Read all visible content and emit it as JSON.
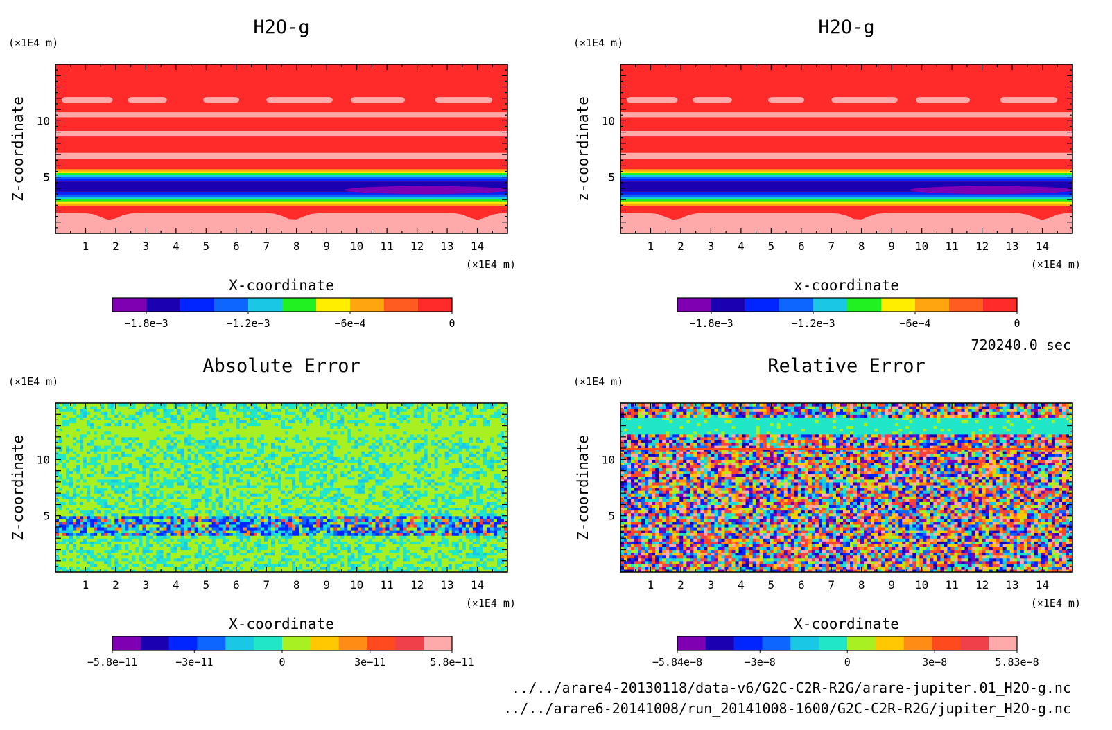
{
  "time_label": "720240.0 sec",
  "files": [
    "../../arare4-20130118/data-v6/G2C-C2R-R2G/arare-jupiter.01_H2O-g.nc",
    "../../arare6-20141008/run_20141008-1600/G2C-C2R-R2G/jupiter_H2O-g.nc"
  ],
  "chart_data": [
    {
      "type": "heatmap",
      "id": "h2o-left",
      "title": "H2O-g",
      "xlabel": "X-coordinate",
      "ylabel": "Z-coordinate",
      "x_unit": "(×1E4 m)",
      "y_unit": "(×1E4 m)",
      "xlim": [
        0,
        15
      ],
      "ylim": [
        0,
        15
      ],
      "x_ticks": [
        1,
        2,
        3,
        4,
        5,
        6,
        7,
        8,
        9,
        10,
        11,
        12,
        13,
        14
      ],
      "y_ticks": [
        5,
        10
      ],
      "pattern": "bands",
      "colorbar": {
        "colors": [
          "#7f00b2",
          "#1b00b2",
          "#0025ff",
          "#0d66ff",
          "#1ac8e6",
          "#21f021",
          "#ffee00",
          "#ffa510",
          "#ff5c22",
          "#ff2a2a"
        ],
        "tick_labels": [
          "−1.8e−3",
          "−1.2e−3",
          "−6e−4",
          "0"
        ],
        "tick_values": [
          -0.0018,
          -0.0012,
          -0.0006,
          0
        ],
        "range": [
          -0.002,
          0.0
        ]
      }
    },
    {
      "type": "heatmap",
      "id": "h2o-right",
      "title": "H2O-g",
      "xlabel": "x-coordinate",
      "ylabel": "z-coordinate",
      "x_unit": "(×1E4 m)",
      "y_unit": "(×1E4 m)",
      "xlim": [
        0,
        15
      ],
      "ylim": [
        0,
        15
      ],
      "x_ticks": [
        1,
        2,
        3,
        4,
        5,
        6,
        7,
        8,
        9,
        10,
        11,
        12,
        13,
        14
      ],
      "y_ticks": [
        5,
        10
      ],
      "pattern": "bands",
      "colorbar": {
        "colors": [
          "#7f00b2",
          "#1b00b2",
          "#0025ff",
          "#0d66ff",
          "#1ac8e6",
          "#21f021",
          "#ffee00",
          "#ffa510",
          "#ff5c22",
          "#ff2a2a"
        ],
        "tick_labels": [
          "−1.8e−3",
          "−1.2e−3",
          "−6e−4",
          "0"
        ],
        "tick_values": [
          -0.0018,
          -0.0012,
          -0.0006,
          0
        ],
        "range": [
          -0.002,
          0.0
        ]
      }
    },
    {
      "type": "heatmap",
      "id": "abs-error",
      "title": "Absolute Error",
      "xlabel": "X-coordinate",
      "ylabel": "Z-coordinate",
      "x_unit": "(×1E4 m)",
      "y_unit": "(×1E4 m)",
      "xlim": [
        0,
        15
      ],
      "ylim": [
        0,
        15
      ],
      "x_ticks": [
        1,
        2,
        3,
        4,
        5,
        6,
        7,
        8,
        9,
        10,
        11,
        12,
        13,
        14
      ],
      "y_ticks": [
        5,
        10
      ],
      "pattern": "abs_noise",
      "colorbar": {
        "colors": [
          "#7f00b2",
          "#1b00b2",
          "#0025ff",
          "#0d66ff",
          "#1ac8e6",
          "#21e6c8",
          "#a8f021",
          "#ffc800",
          "#ff8c14",
          "#ff4a1e",
          "#f0404a",
          "#ffaaaa"
        ],
        "tick_labels": [
          "−5.8e−11",
          "−3e−11",
          "0",
          "3e−11",
          "5.8e−11"
        ],
        "tick_values": [
          -5.8e-11,
          -3e-11,
          0,
          3e-11,
          5.8e-11
        ],
        "range": [
          -5.8e-11,
          5.8e-11
        ]
      }
    },
    {
      "type": "heatmap",
      "id": "rel-error",
      "title": "Relative Error",
      "xlabel": "X-coordinate",
      "ylabel": "Z-coordinate",
      "x_unit": "(×1E4 m)",
      "y_unit": "(×1E4 m)",
      "xlim": [
        0,
        15
      ],
      "ylim": [
        0,
        15
      ],
      "x_ticks": [
        1,
        2,
        3,
        4,
        5,
        6,
        7,
        8,
        9,
        10,
        11,
        12,
        13,
        14
      ],
      "y_ticks": [
        5,
        10
      ],
      "pattern": "rel_noise",
      "colorbar": {
        "colors": [
          "#7f00b2",
          "#1b00b2",
          "#0025ff",
          "#0d66ff",
          "#1ac8e6",
          "#21e6c8",
          "#a8f021",
          "#ffc800",
          "#ff8c14",
          "#ff4a1e",
          "#f0404a",
          "#ffaaaa"
        ],
        "tick_labels": [
          "−5.84e−8",
          "−3e−8",
          "0",
          "3e−8",
          "5.83e−8"
        ],
        "tick_values": [
          -5.84e-08,
          -3e-08,
          0,
          3e-08,
          5.83e-08
        ],
        "range": [
          -5.84e-08,
          5.83e-08
        ]
      }
    }
  ]
}
